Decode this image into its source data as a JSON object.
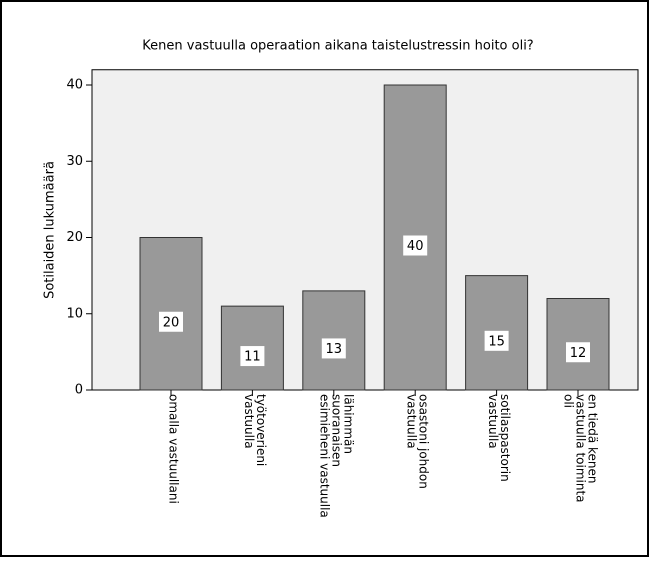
{
  "chart_data": {
    "type": "bar",
    "title": "Kenen vastuulla operaation aikana taistelustressin hoito oli?",
    "y_label": "Sotilaiden lukumäärä",
    "categories": [
      [
        "omalla vastuullani"
      ],
      [
        "työtoverieni",
        "vastuulla"
      ],
      [
        "lähimmän",
        "suoranaisen",
        "esimieheni vastuulla"
      ],
      [
        "osastoni johdon",
        "vastuulla"
      ],
      [
        "sotilaspastorin",
        "vastuulla"
      ],
      [
        "en tiedä kenen",
        "vastuulla toiminta",
        "oli"
      ]
    ],
    "values": [
      20,
      11,
      13,
      40,
      15,
      12
    ],
    "color": "#999999",
    "ylim": [
      0,
      42
    ],
    "yticks": [
      0,
      10,
      20,
      30,
      40
    ],
    "grid": false
  }
}
